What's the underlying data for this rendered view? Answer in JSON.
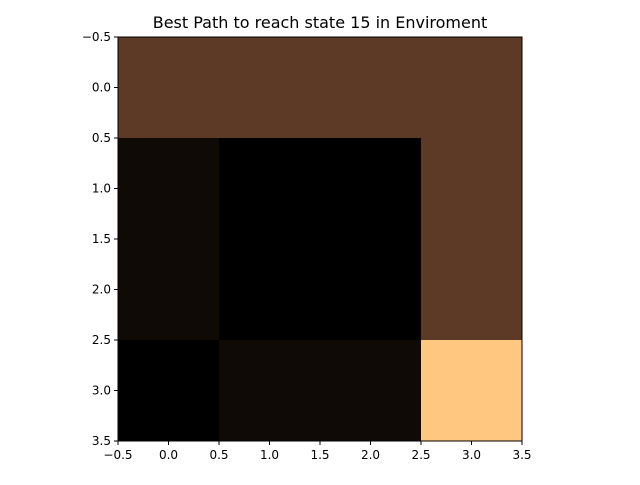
{
  "chart_data": {
    "type": "heatmap",
    "title": "Best Path to reach state 15 in Enviroment",
    "xlabel": "",
    "ylabel": "",
    "xlim": [
      -0.5,
      3.5
    ],
    "ylim": [
      3.5,
      -0.5
    ],
    "grid": false,
    "colormap": "copper",
    "cell_colors": [
      [
        "#5c3a25",
        "#5c3a25",
        "#5c3a25",
        "#5c3a25"
      ],
      [
        "#0f0a06",
        "#000000",
        "#000000",
        "#5c3a25"
      ],
      [
        "#0f0a06",
        "#000000",
        "#000000",
        "#5c3a25"
      ],
      [
        "#000000",
        "#0f0a06",
        "#0f0a06",
        "#ffc77f"
      ]
    ],
    "xticks": [
      "−0.5",
      "0.0",
      "0.5",
      "1.0",
      "1.5",
      "2.0",
      "2.5",
      "3.0",
      "3.5"
    ],
    "yticks": [
      "−0.5",
      "0.0",
      "0.5",
      "1.0",
      "1.5",
      "2.0",
      "2.5",
      "3.0",
      "3.5"
    ]
  }
}
